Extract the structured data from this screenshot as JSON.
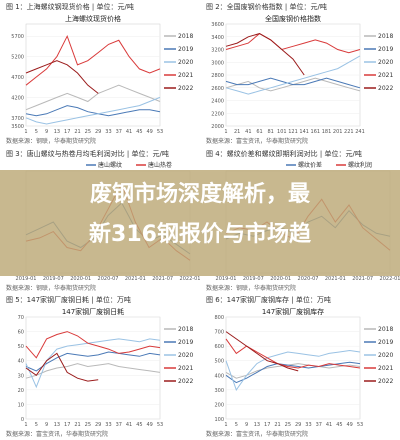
{
  "overlay": {
    "title_line1": "废钢市场深度解析，最",
    "title_line2": "新316钢报价与市场趋"
  },
  "panels": [
    {
      "figure_label": "图 1：上海螺纹钢现货价格 | 单位：元/吨",
      "source": "数据来源：钢联，华泰期货研究院"
    },
    {
      "figure_label": "图 2：全国废钢价格指数 | 单位：元/吨",
      "source": "数据来源：富宝资讯，华泰期货研究院"
    },
    {
      "figure_label": "图 3：唐山螺纹与热卷月均毛利润对比 | 单位：元/吨",
      "source": "数据来源：钢联，华泰期货研究院"
    },
    {
      "figure_label": "图 4：螺纹价差和螺纹即期利润对比 | 单位：元/吨",
      "source": "数据来源：钢联，华泰期货研究院"
    },
    {
      "figure_label": "图 5：147家钢厂废钢日耗 | 单位：万吨",
      "source": "数据来源：富宝资讯，华泰期货研究院"
    },
    {
      "figure_label": "图 6：147家钢厂废钢库存 | 单位：万吨",
      "source": "数据来源：富宝资讯，华泰期货研究院"
    }
  ],
  "colors": {
    "y2018": "#b9b9b9",
    "y2019": "#4a79b6",
    "y2020": "#9ac2e4",
    "y2021": "#d93a3a",
    "y2022": "#9b1c1c"
  },
  "chart_data": [
    {
      "type": "line",
      "title": "上海螺纹现货价格",
      "x_ticks": [
        "1",
        "5",
        "9",
        "13",
        "17",
        "21",
        "25",
        "29",
        "33",
        "37",
        "41",
        "45",
        "49",
        "53"
      ],
      "ylim": [
        3500,
        6000
      ],
      "y_ticks": [
        "3500",
        "3700",
        "4200",
        "4700",
        "5200",
        "5700"
      ],
      "legend": "right",
      "series": [
        {
          "name": "2018",
          "values": [
            3900,
            4000,
            4100,
            4200,
            4300,
            4200,
            4100,
            4300,
            4400,
            4500,
            4400,
            4300,
            4200,
            4100
          ]
        },
        {
          "name": "2019",
          "values": [
            3800,
            3750,
            3800,
            3900,
            4000,
            3950,
            3850,
            3800,
            3750,
            3800,
            3850,
            3900,
            3900,
            3850
          ]
        },
        {
          "name": "2020",
          "values": [
            3700,
            3600,
            3550,
            3600,
            3650,
            3700,
            3750,
            3800,
            3850,
            3900,
            3950,
            4000,
            4100,
            4200
          ]
        },
        {
          "name": "2021",
          "values": [
            4500,
            4700,
            4900,
            5200,
            5700,
            5000,
            5100,
            5300,
            5500,
            5600,
            5200,
            4900,
            4800,
            4900
          ]
        },
        {
          "name": "2022",
          "values": [
            4800,
            4900,
            5000,
            5100,
            5000,
            4800,
            4500,
            4300
          ]
        }
      ]
    },
    {
      "type": "line",
      "title": "全国废钢价格指数",
      "x_ticks": [
        "1",
        "21",
        "41",
        "61",
        "81",
        "101",
        "121",
        "141",
        "161",
        "181",
        "201",
        "221",
        "241"
      ],
      "ylim": [
        2000,
        3600
      ],
      "y_ticks": [
        "2000",
        "2200",
        "2400",
        "2600",
        "2800",
        "3000",
        "3200",
        "3400",
        "3600"
      ],
      "legend": "right",
      "series": [
        {
          "name": "2018",
          "values": [
            2600,
            2650,
            2700,
            2600,
            2550,
            2600,
            2650,
            2700,
            2750,
            2700,
            2650,
            2600,
            2550
          ]
        },
        {
          "name": "2019",
          "values": [
            2700,
            2650,
            2650,
            2700,
            2750,
            2700,
            2650,
            2650,
            2700,
            2750,
            2700,
            2650,
            2600
          ]
        },
        {
          "name": "2020",
          "values": [
            2600,
            2550,
            2500,
            2550,
            2600,
            2650,
            2700,
            2750,
            2800,
            2850,
            2900,
            3000,
            3100
          ]
        },
        {
          "name": "2021",
          "values": [
            3200,
            3250,
            3300,
            3450,
            3350,
            3200,
            3250,
            3300,
            3350,
            3300,
            3200,
            3150,
            3200
          ]
        },
        {
          "name": "2022",
          "values": [
            3250,
            3300,
            3400,
            3450,
            3350,
            3200,
            3050,
            2800
          ]
        }
      ]
    },
    {
      "type": "line",
      "title": "",
      "x_ticks": [
        "2019-01",
        "2019-07",
        "2020-01",
        "2020-07",
        "2021-01",
        "2021-07",
        "2022-01"
      ],
      "ylim": [
        -200,
        1400
      ],
      "legend": "top",
      "series": [
        {
          "name": "唐山螺纹",
          "values": [
            400,
            500,
            600,
            300,
            200,
            350,
            700,
            900,
            500,
            300,
            400,
            250,
            100
          ]
        },
        {
          "name": "唐山热卷",
          "values": [
            300,
            350,
            450,
            200,
            150,
            400,
            800,
            1200,
            600,
            200,
            350,
            150,
            0
          ]
        }
      ]
    },
    {
      "type": "line",
      "title": "",
      "x_ticks": [
        "2019-01",
        "2019-07",
        "2020-01",
        "2020-07",
        "2021-01",
        "2021-07",
        "2022-01"
      ],
      "ylim": [
        -400,
        1400
      ],
      "legend": "top",
      "series": [
        {
          "name": "螺纹价差",
          "values": [
            200,
            300,
            250,
            350,
            400,
            300,
            500,
            600,
            400,
            700,
            450,
            300,
            250
          ]
        },
        {
          "name": "螺纹利润",
          "values": [
            300,
            400,
            350,
            500,
            300,
            200,
            600,
            900,
            500,
            800,
            400,
            200,
            0
          ]
        }
      ]
    },
    {
      "type": "line",
      "title": "147家钢厂废钢日耗",
      "x_ticks": [
        "1",
        "5",
        "9",
        "13",
        "17",
        "21",
        "25",
        "29",
        "33",
        "37",
        "41",
        "45",
        "49",
        "53"
      ],
      "ylim": [
        0,
        70
      ],
      "y_ticks": [
        "0",
        "10",
        "20",
        "30",
        "40",
        "50",
        "60",
        "70"
      ],
      "legend": "right",
      "series": [
        {
          "name": "2018",
          "values": [
            28,
            30,
            33,
            35,
            36,
            38,
            36,
            37,
            38,
            36,
            35,
            34,
            33,
            32
          ]
        },
        {
          "name": "2019",
          "values": [
            36,
            33,
            38,
            42,
            45,
            44,
            43,
            44,
            46,
            45,
            44,
            43,
            45,
            44
          ]
        },
        {
          "name": "2020",
          "values": [
            38,
            22,
            40,
            48,
            50,
            51,
            52,
            53,
            54,
            55,
            54,
            53,
            55,
            54
          ]
        },
        {
          "name": "2021",
          "values": [
            50,
            42,
            55,
            58,
            60,
            57,
            52,
            50,
            48,
            45,
            46,
            48,
            50,
            49
          ]
        },
        {
          "name": "2022",
          "values": [
            35,
            30,
            40,
            45,
            32,
            28,
            26,
            27
          ]
        }
      ]
    },
    {
      "type": "line",
      "title": "147家钢厂废钢库存",
      "x_ticks": [
        "1",
        "5",
        "9",
        "13",
        "17",
        "21",
        "25",
        "29",
        "33",
        "37",
        "41",
        "45",
        "49",
        "53"
      ],
      "ylim": [
        100,
        800
      ],
      "y_ticks": [
        "100",
        "200",
        "300",
        "400",
        "500",
        "600",
        "700",
        "800"
      ],
      "legend": "right",
      "series": [
        {
          "name": "2018",
          "values": [
            420,
            380,
            400,
            430,
            450,
            460,
            470,
            480,
            470,
            460,
            450,
            460,
            470,
            460
          ]
        },
        {
          "name": "2019",
          "values": [
            400,
            350,
            380,
            420,
            460,
            480,
            470,
            460,
            450,
            460,
            470,
            480,
            490,
            480
          ]
        },
        {
          "name": "2020",
          "values": [
            500,
            300,
            400,
            480,
            520,
            540,
            560,
            550,
            540,
            530,
            550,
            560,
            570,
            560
          ]
        },
        {
          "name": "2021",
          "values": [
            650,
            550,
            600,
            560,
            520,
            480,
            460,
            450,
            470,
            460,
            480,
            470,
            460,
            450
          ]
        },
        {
          "name": "2022",
          "values": [
            700,
            650,
            600,
            550,
            500,
            480,
            450,
            430
          ]
        }
      ]
    }
  ]
}
